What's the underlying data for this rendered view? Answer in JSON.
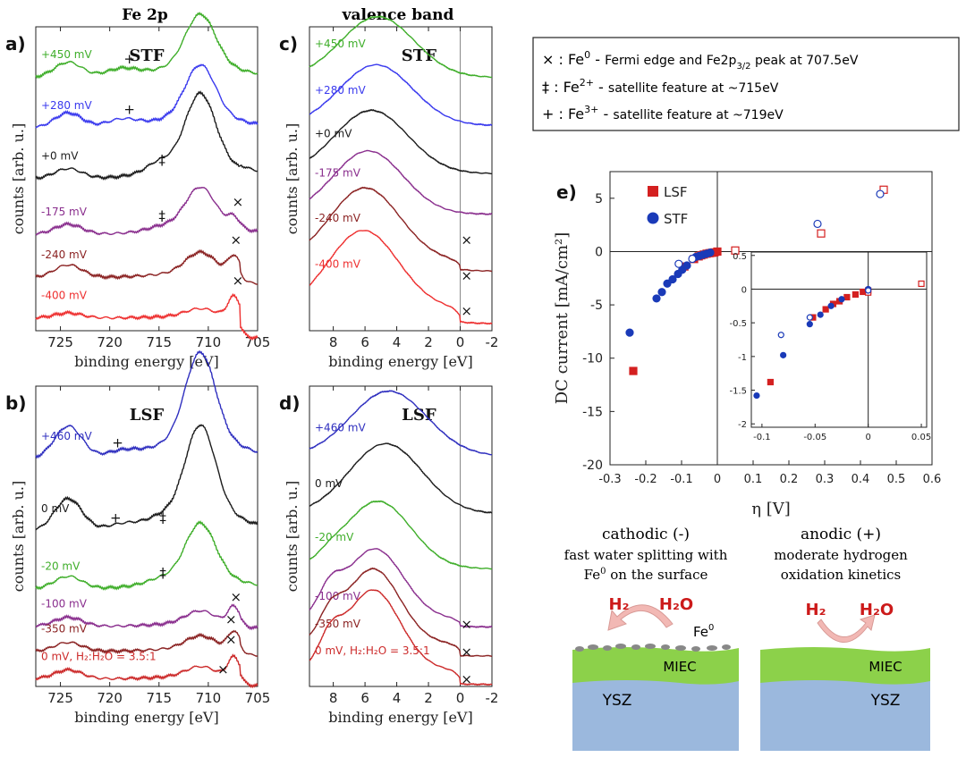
{
  "colors": {
    "axis": "#222222",
    "c450": "#3fae2a",
    "c280": "#3a3aee",
    "c0": "#1c1c1c",
    "c175": "#8a2f8e",
    "c240": "#8b2323",
    "c400": "#ee3030",
    "lsf_blue": "#2f2fbf",
    "lsf_green": "#3fae2a",
    "lsf_purple": "#8a2f8e",
    "lsf_brown": "#8b2323",
    "lsf_red": "#cc2a2a",
    "LSF": "#d42020",
    "STF": "#1a3ab8",
    "miec": "#8cd14a",
    "ysz": "#9bb8dd",
    "arrow": "#f2b8b4",
    "h_red": "#cc1a1a"
  },
  "headers": {
    "fe2p": "Fe 2p",
    "valence": "valence band"
  },
  "legend_box": {
    "lines": [
      {
        "symbol": "×",
        "ion": "Fe",
        "charge": "0",
        "dash": "-",
        "text_a": "Fermi edge and Fe2p",
        "sub": "3/2",
        "text_b": "peak at 707.5eV"
      },
      {
        "symbol": "‡",
        "ion": "Fe",
        "charge": "2+",
        "dash": "-",
        "text_a": "satellite feature at ~715eV",
        "sub": "",
        "text_b": ""
      },
      {
        "symbol": "+",
        "ion": "Fe",
        "charge": "3+",
        "dash": "-",
        "text_a": "satellite feature at ~719eV",
        "sub": "",
        "text_b": ""
      }
    ]
  },
  "chart_data": [
    {
      "id": "a",
      "type": "line",
      "panel_label": "a)",
      "material": "STF",
      "xlabel": "binding energy [eV]",
      "ylabel": "counts [arb. u.]",
      "xlim": [
        727.5,
        705
      ],
      "xticks": [
        725,
        720,
        715,
        710,
        705
      ],
      "series": [
        {
          "name": "+450 mV",
          "color_key": "c450",
          "offset": 5.0,
          "pre": 0.3,
          "fe2": 0,
          "fe3": 0.15,
          "main": 1.0,
          "fe0": 0,
          "tail": 0.0
        },
        {
          "name": "+280 mV",
          "color_key": "c280",
          "offset": 4.0,
          "pre": 0.3,
          "fe2": 0,
          "fe3": 0.15,
          "main": 1.0,
          "fe0": 0,
          "tail": 0.0
        },
        {
          "name": "+0 mV",
          "color_key": "c0",
          "offset": 3.0,
          "pre": 0.2,
          "fe2": 0.15,
          "fe3": 0,
          "main": 1.35,
          "fe0": 0,
          "tail": 0.05
        },
        {
          "name": "-175 mV",
          "color_key": "c175",
          "offset": 1.9,
          "pre": 0.2,
          "fe2": 0.05,
          "fe3": 0,
          "main": 0.75,
          "fe0": 0.2,
          "tail": 0.0
        },
        {
          "name": "-240 mV",
          "color_key": "c240",
          "offset": 1.05,
          "pre": 0.25,
          "fe2": 0,
          "fe3": 0,
          "main": 0.4,
          "fe0": 0.35,
          "tail": -0.15
        },
        {
          "name": "-400 mV",
          "color_key": "c400",
          "offset": 0.25,
          "pre": 0.1,
          "fe2": 0,
          "fe3": 0,
          "main": 0.15,
          "fe0": 0.4,
          "tail": -0.4
        }
      ],
      "markers": [
        {
          "symbol": "+",
          "x": 718,
          "y": 5.28
        },
        {
          "symbol": "+",
          "x": 718,
          "y": 4.28
        },
        {
          "symbol": "‡",
          "x": 714.7,
          "y": 3.28
        },
        {
          "symbol": "‡",
          "x": 714.7,
          "y": 2.18
        },
        {
          "symbol": "×",
          "x": 707,
          "y": 2.45
        },
        {
          "symbol": "×",
          "x": 707.2,
          "y": 1.7
        },
        {
          "symbol": "×",
          "x": 707,
          "y": 0.9
        }
      ]
    },
    {
      "id": "b",
      "type": "line",
      "panel_label": "b)",
      "material": "LSF",
      "xlabel": "binding energy [eV]",
      "ylabel": "counts [arb. u.]",
      "xlim": [
        727.5,
        705
      ],
      "xticks": [
        725,
        720,
        715,
        710,
        705
      ],
      "series": [
        {
          "name": "+460 mV",
          "color_key": "lsf_blue",
          "offset": 4.55,
          "pre": 0.65,
          "fe2": 0,
          "fe3": 0.12,
          "main": 1.7,
          "fe0": 0,
          "tail": 0.0
        },
        {
          "name": "0 mV",
          "color_key": "c0",
          "offset": 3.1,
          "pre": 0.65,
          "fe2": 0.06,
          "fe3": 0.1,
          "main": 1.7,
          "fe0": 0,
          "tail": 0.0
        },
        {
          "name": "-20 mV",
          "color_key": "lsf_green",
          "offset": 1.95,
          "pre": 0.25,
          "fe2": 0.06,
          "fe3": 0,
          "main": 1.05,
          "fe0": 0,
          "tail": 0.0
        },
        {
          "name": "-100 mV",
          "color_key": "lsf_purple",
          "offset": 1.2,
          "pre": 0.18,
          "fe2": 0,
          "fe3": 0,
          "main": 0.25,
          "fe0": 0.35,
          "tail": -0.05
        },
        {
          "name": "-350 mV",
          "color_key": "lsf_brown",
          "offset": 0.7,
          "pre": 0.18,
          "fe2": 0,
          "fe3": 0,
          "main": 0.25,
          "fe0": 0.35,
          "tail": -0.1
        },
        {
          "name": "0 mV, H₂:H₂O = 3.5:1",
          "color_key": "lsf_red",
          "offset": 0.15,
          "pre": 0.18,
          "fe2": 0,
          "fe3": 0,
          "main": 0.2,
          "fe0": 0.4,
          "tail": -0.15
        }
      ],
      "markers": [
        {
          "symbol": "+",
          "x": 719.2,
          "y": 4.78
        },
        {
          "symbol": "+",
          "x": 719.4,
          "y": 3.28
        },
        {
          "symbol": "‡",
          "x": 714.6,
          "y": 3.28
        },
        {
          "symbol": "‡",
          "x": 714.6,
          "y": 2.18
        },
        {
          "symbol": "×",
          "x": 707.2,
          "y": 1.7
        },
        {
          "symbol": "×",
          "x": 707.7,
          "y": 1.25
        },
        {
          "symbol": "×",
          "x": 707.7,
          "y": 0.85
        },
        {
          "symbol": "×",
          "x": 708.5,
          "y": 0.25
        }
      ]
    },
    {
      "id": "c",
      "type": "line",
      "panel_label": "c)",
      "material": "STF",
      "xlabel": "binding energy [eV]",
      "ylabel": "counts [arb. u.]",
      "xlim": [
        9.5,
        -2
      ],
      "xticks": [
        8,
        6,
        4,
        2,
        0,
        -2
      ],
      "vline": 0,
      "series": [
        {
          "name": "+450 mV",
          "color_key": "c450",
          "offset": 5.0,
          "peak": 1.2,
          "center": 5.2,
          "width": 2.3,
          "edge": 0.0
        },
        {
          "name": "+280 mV",
          "color_key": "c280",
          "offset": 4.05,
          "peak": 1.2,
          "center": 5.3,
          "width": 2.3,
          "edge": 0.0
        },
        {
          "name": "+0 mV",
          "color_key": "c0",
          "offset": 3.1,
          "peak": 1.25,
          "center": 5.6,
          "width": 2.3,
          "edge": 0.0
        },
        {
          "name": "-175 mV",
          "color_key": "c175",
          "offset": 2.3,
          "peak": 1.25,
          "center": 5.8,
          "width": 2.2,
          "edge": 0.0
        },
        {
          "name": "-240 mV",
          "color_key": "c240",
          "offset": 1.25,
          "peak": 1.45,
          "center": 6.0,
          "width": 2.2,
          "edge": 0.12
        },
        {
          "name": "-400 mV",
          "color_key": "c400",
          "offset": 0.25,
          "peak": 1.55,
          "center": 6.1,
          "width": 2.2,
          "edge": 0.18
        }
      ],
      "markers": [
        {
          "symbol": "×",
          "x": -0.4,
          "y": 1.7
        },
        {
          "symbol": "×",
          "x": -0.4,
          "y": 1.0
        },
        {
          "symbol": "×",
          "x": -0.4,
          "y": 0.3
        }
      ]
    },
    {
      "id": "d",
      "type": "line",
      "panel_label": "d)",
      "material": "LSF",
      "xlabel": "binding energy [eV]",
      "ylabel": "counts [arb. u.]",
      "xlim": [
        9.5,
        -2
      ],
      "xticks": [
        8,
        6,
        4,
        2,
        0,
        -2
      ],
      "vline": 0,
      "series": [
        {
          "name": "+460 mV",
          "color_key": "lsf_blue",
          "offset": 4.6,
          "peak": 1.3,
          "center": 4.5,
          "width": 2.4,
          "edge": 0.0,
          "shoulder": 0.0
        },
        {
          "name": "0 mV",
          "color_key": "c0",
          "offset": 3.45,
          "peak": 1.4,
          "center": 4.7,
          "width": 2.3,
          "edge": 0.0,
          "shoulder": 0.0
        },
        {
          "name": "-20 mV",
          "color_key": "lsf_green",
          "offset": 2.35,
          "peak": 1.35,
          "center": 5.2,
          "width": 2.1,
          "edge": 0.0,
          "shoulder": 0.1
        },
        {
          "name": "-100 mV",
          "color_key": "lsf_purple",
          "offset": 1.25,
          "peak": 1.4,
          "center": 5.4,
          "width": 1.8,
          "edge": 0.1,
          "shoulder": 0.45
        },
        {
          "name": "-350 mV",
          "color_key": "lsf_brown",
          "offset": 0.7,
          "peak": 1.5,
          "center": 5.5,
          "width": 1.7,
          "edge": 0.15,
          "shoulder": 0.45
        },
        {
          "name": "0 mV, H₂:H₂O = 3.5:1",
          "color_key": "lsf_red",
          "offset": 0.15,
          "peak": 1.6,
          "center": 5.5,
          "width": 1.7,
          "edge": 0.18,
          "shoulder": 0.5
        }
      ],
      "markers": [
        {
          "symbol": "×",
          "x": -0.4,
          "y": 1.15
        },
        {
          "symbol": "×",
          "x": -0.4,
          "y": 0.6
        },
        {
          "symbol": "×",
          "x": -0.4,
          "y": 0.05
        }
      ]
    },
    {
      "id": "e",
      "type": "scatter",
      "panel_label": "e)",
      "xlabel": "η [V]",
      "ylabel": "DC current [mA/cm²]",
      "xlim": [
        -0.3,
        0.6
      ],
      "ylim": [
        -20,
        7.5
      ],
      "xticks": [
        -0.3,
        -0.2,
        -0.1,
        0,
        0.1,
        0.2,
        0.3,
        0.4,
        0.5,
        0.6
      ],
      "yticks": [
        -20,
        -15,
        -10,
        -5,
        0,
        5
      ],
      "legend": [
        "LSF",
        "STF"
      ],
      "series": [
        {
          "name": "LSF",
          "marker": "square",
          "filled": true,
          "color_key": "LSF",
          "x": [
            -0.235,
            -0.092,
            -0.065,
            -0.052,
            -0.045,
            -0.038,
            -0.03,
            -0.022,
            -0.015,
            -0.008,
            0
          ],
          "y": [
            -11.2,
            -1.4,
            -0.7,
            -0.45,
            -0.35,
            -0.28,
            -0.2,
            -0.15,
            -0.12,
            -0.08,
            0
          ]
        },
        {
          "name": "LSF",
          "marker": "square",
          "filled": false,
          "color_key": "LSF",
          "x": [
            0.05,
            0.29,
            0.465
          ],
          "y": [
            0.1,
            1.7,
            5.8
          ]
        },
        {
          "name": "STF",
          "marker": "circle",
          "filled": true,
          "color_key": "STF",
          "x": [
            -0.245,
            -0.17,
            -0.155,
            -0.14,
            -0.125,
            -0.11,
            -0.098,
            -0.085,
            -0.06,
            -0.05,
            -0.04,
            -0.03,
            -0.02
          ],
          "y": [
            -7.6,
            -4.4,
            -3.8,
            -3.0,
            -2.6,
            -2.1,
            -1.7,
            -1.3,
            -0.5,
            -0.4,
            -0.3,
            -0.2,
            -0.1
          ]
        },
        {
          "name": "STF",
          "marker": "circle",
          "filled": false,
          "color_key": "STF",
          "x": [
            -0.108,
            -0.07,
            0.28,
            0.455
          ],
          "y": [
            -1.15,
            -0.68,
            2.6,
            5.4
          ]
        }
      ],
      "inset": {
        "xlim": [
          -0.11,
          0.055
        ],
        "ylim": [
          -2.05,
          0.55
        ],
        "xticks": [
          -0.1,
          -0.05,
          0,
          0.05
        ],
        "yticks": [
          -2,
          -1.5,
          -1,
          -0.5,
          0,
          0.5
        ],
        "series": [
          {
            "marker": "square",
            "filled": true,
            "color_key": "LSF",
            "x": [
              -0.092,
              -0.052,
              -0.04,
              -0.033,
              -0.027,
              -0.02,
              -0.012,
              -0.005,
              0
            ],
            "y": [
              -1.38,
              -0.42,
              -0.3,
              -0.22,
              -0.18,
              -0.12,
              -0.08,
              -0.04,
              -0.02
            ]
          },
          {
            "marker": "square",
            "filled": false,
            "color_key": "LSF",
            "x": [
              0,
              0.05
            ],
            "y": [
              -0.05,
              0.08
            ]
          },
          {
            "marker": "circle",
            "filled": true,
            "color_key": "STF",
            "x": [
              -0.105,
              -0.08,
              -0.055,
              -0.045,
              -0.035,
              -0.025,
              0
            ],
            "y": [
              -1.58,
              -0.98,
              -0.52,
              -0.38,
              -0.25,
              -0.15,
              0
            ]
          },
          {
            "marker": "circle",
            "filled": false,
            "color_key": "STF",
            "x": [
              -0.082,
              -0.055,
              0
            ],
            "y": [
              -0.68,
              -0.42,
              -0.02
            ]
          }
        ]
      }
    }
  ],
  "schematic": {
    "cathodic": {
      "title": "cathodic (-)",
      "desc1": "fast water splitting with",
      "desc2_base": "Fe",
      "desc2_sup": "0",
      "desc2_rest": " on the surface",
      "from": "H₂O",
      "to": "H₂",
      "fe_label_base": "Fe",
      "fe_label_sup": "0"
    },
    "anodic": {
      "title": "anodic (+)",
      "desc1": "moderate hydrogen",
      "desc2": "oxidation kinetics",
      "from": "H₂",
      "to": "H₂O"
    },
    "layer_top": "MIEC",
    "layer_bottom": "YSZ"
  }
}
